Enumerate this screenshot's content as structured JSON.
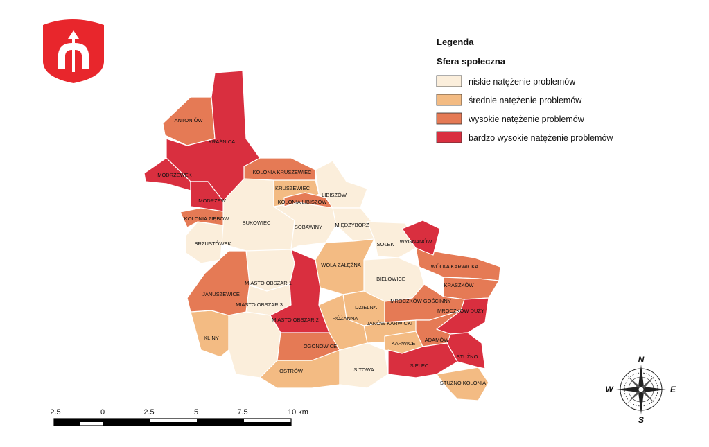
{
  "colors": {
    "niskie": "#fbeedb",
    "srednie": "#f3bb83",
    "wysokie": "#e57a55",
    "bardzo_wysokie": "#d92f3f",
    "crest_red": "#e8262c"
  },
  "legend": {
    "title": "Legenda",
    "subtitle": "Sfera społeczna",
    "items": [
      {
        "label": "niskie natężenie problemów",
        "level": "niskie"
      },
      {
        "label": "średnie natężenie problemów",
        "level": "srednie"
      },
      {
        "label": "wysokie natężenie problemów",
        "level": "wysokie"
      },
      {
        "label": "bardzo wysokie natężenie problemów",
        "level": "bardzo_wysokie"
      }
    ]
  },
  "regions": [
    {
      "name": "ANTONIÓW",
      "level": "wysokie"
    },
    {
      "name": "KRAŚNICA",
      "level": "bardzo_wysokie"
    },
    {
      "name": "MODRZEWEK",
      "level": "bardzo_wysokie"
    },
    {
      "name": "KOLONIA KRUSZEWIEC",
      "level": "wysokie"
    },
    {
      "name": "KRUSZEWIEC",
      "level": "srednie"
    },
    {
      "name": "LIBISZÓW",
      "level": "niskie"
    },
    {
      "name": "KOLONIA LIBISZÓW",
      "level": "wysokie"
    },
    {
      "name": "MODRZEW",
      "level": "bardzo_wysokie"
    },
    {
      "name": "KOLONIA ZIĘBÓW",
      "level": "wysokie"
    },
    {
      "name": "BUKOWIEC",
      "level": "niskie"
    },
    {
      "name": "SOBAWINY",
      "level": "niskie"
    },
    {
      "name": "MIĘDZYBÓRZ",
      "level": "niskie"
    },
    {
      "name": "SOŁEK",
      "level": "niskie"
    },
    {
      "name": "WYGNANÓW",
      "level": "bardzo_wysokie"
    },
    {
      "name": "BRZUSTÓWEK",
      "level": "niskie"
    },
    {
      "name": "WOLA ZAŁĘŻNA",
      "level": "srednie"
    },
    {
      "name": "WÓLKA KARWICKA",
      "level": "wysokie"
    },
    {
      "name": "MIASTO OBSZAR 1",
      "level": "niskie"
    },
    {
      "name": "BIELOWICE",
      "level": "niskie"
    },
    {
      "name": "KRASZKÓW",
      "level": "wysokie"
    },
    {
      "name": "JANUSZEWICE",
      "level": "wysokie"
    },
    {
      "name": "MIASTO OBSZAR 3",
      "level": "niskie"
    },
    {
      "name": "MROCZKÓW GOŚCINNY",
      "level": "wysokie"
    },
    {
      "name": "DZIELNA",
      "level": "srednie"
    },
    {
      "name": "MROCZKÓW DUŻY",
      "level": "bardzo_wysokie"
    },
    {
      "name": "MIASTO OBSZAR 2",
      "level": "bardzo_wysokie"
    },
    {
      "name": "RÓŻANNA",
      "level": "srednie"
    },
    {
      "name": "JANÓW KARWICKI",
      "level": "srednie"
    },
    {
      "name": "KLINY",
      "level": "srednie"
    },
    {
      "name": "KARWICE",
      "level": "srednie"
    },
    {
      "name": "ADAMÓW",
      "level": "wysokie"
    },
    {
      "name": "OGONOWICE",
      "level": "wysokie"
    },
    {
      "name": "STUŻNO",
      "level": "bardzo_wysokie"
    },
    {
      "name": "SIELEC",
      "level": "bardzo_wysokie"
    },
    {
      "name": "OSTRÓW",
      "level": "srednie"
    },
    {
      "name": "SITOWA",
      "level": "niskie"
    },
    {
      "name": "STUŻNO KOLONIA",
      "level": "srednie"
    }
  ],
  "scale_bar": {
    "labels": [
      "2.5",
      "0",
      "2.5",
      "5",
      "7.5",
      "10 km"
    ]
  },
  "compass": {
    "n": "N",
    "s": "S",
    "e": "E",
    "w": "W"
  },
  "crest": {
    "icon": "coat-of-arms-icon"
  }
}
